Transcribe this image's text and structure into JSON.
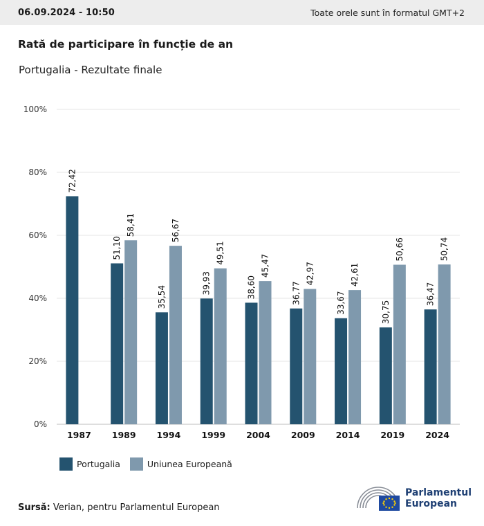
{
  "header": {
    "timestamp": "06.09.2024 - 10:50",
    "timezone_note": "Toate orele sunt în formatul GMT+2"
  },
  "chart_data": {
    "type": "bar",
    "title": "Rată de participare în funcție de an",
    "subtitle": "Portugalia - Rezultate finale",
    "categories": [
      "1987",
      "1989",
      "1994",
      "1999",
      "2004",
      "2009",
      "2014",
      "2019",
      "2024"
    ],
    "series": [
      {
        "name": "Portugalia",
        "color": "#24536f",
        "values": [
          72.42,
          51.1,
          35.54,
          39.93,
          38.6,
          36.77,
          33.67,
          30.75,
          36.47
        ],
        "labels": [
          "72,42",
          "51,10",
          "35,54",
          "39,93",
          "38,60",
          "36,77",
          "33,67",
          "30,75",
          "36,47"
        ]
      },
      {
        "name": "Uniunea Europeană",
        "color": "#7f99ad",
        "values": [
          null,
          58.41,
          56.67,
          49.51,
          45.47,
          42.97,
          42.61,
          50.66,
          50.74
        ],
        "labels": [
          "",
          "58,41",
          "56,67",
          "49,51",
          "45,47",
          "42,97",
          "42,61",
          "50,66",
          "50,74"
        ]
      }
    ],
    "yticks": [
      "0%",
      "20%",
      "40%",
      "60%",
      "80%",
      "100%"
    ],
    "ylim": [
      0,
      100
    ],
    "grid": true,
    "legend": "bottom-left"
  },
  "source": {
    "label": "Sursă:",
    "text": "Verian, pentru Parlamentul European"
  },
  "logo": {
    "line1": "Parlamentul",
    "line2": "European"
  }
}
